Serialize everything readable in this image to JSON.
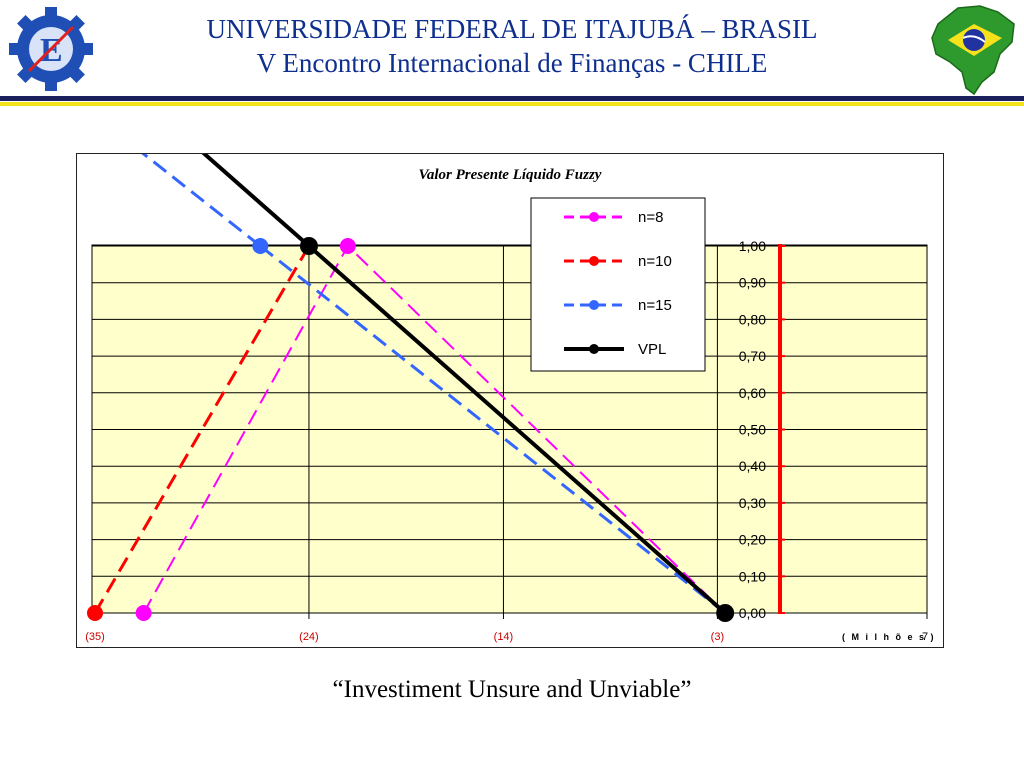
{
  "header": {
    "title_line1": "UNIVERSIDADE FEDERAL DE ITAJUBÁ – BRASIL",
    "title_line2": "V Encontro Internacional de Finanças - CHILE"
  },
  "caption": "“Investiment Unsure and Unviable”",
  "colors": {
    "header_text": "#0f2f8f",
    "rule_navy": "#1b1f5e",
    "rule_yellow": "#f2e21a",
    "plot_bg": "#ffffcc",
    "n8": "#ff00ff",
    "n10": "#ff0000",
    "n15": "#3366ff",
    "vpl": "#000000",
    "axis_red": "#ff0000"
  },
  "icons": {
    "left_logo": "university-gear-logo-icon",
    "right_logo": "brazil-map-flag-icon"
  },
  "chart_data": {
    "type": "line",
    "title": "Valor Presente Líquido Fuzzy",
    "unit_label": "( M i l h õ e s )",
    "x_tick_labels": [
      "(35)",
      "(24)",
      "(14)",
      "(3)"
    ],
    "x_tick_values": [
      -35,
      -24,
      -14,
      -3
    ],
    "x_extra_label": "7",
    "xlim": [
      -35,
      7
    ],
    "y_tick_labels": [
      "0,00",
      "0,10",
      "0,20",
      "0,30",
      "0,40",
      "0,50",
      "0,60",
      "0,70",
      "0,80",
      "0,90",
      "1,00"
    ],
    "ylim": [
      0,
      1
    ],
    "grid": true,
    "legend_position": "top-right",
    "series": [
      {
        "name": "n=8",
        "style": "dashed",
        "color": "#ff00ff",
        "x": [
          -32.5,
          -22,
          -2.6
        ],
        "y": [
          0,
          1,
          0
        ]
      },
      {
        "name": "n=10",
        "style": "dashed",
        "color": "#ff0000",
        "x": [
          -35,
          -24,
          -2.6
        ],
        "y": [
          0,
          1,
          0
        ]
      },
      {
        "name": "n=15",
        "style": "dashed",
        "color": "#3366ff",
        "x": [
          -26.5,
          -2.6
        ],
        "y": [
          1,
          0
        ]
      },
      {
        "name": "VPL",
        "style": "solid",
        "color": "#000000",
        "x": [
          -24,
          -2.6
        ],
        "y": [
          1,
          0
        ]
      }
    ]
  }
}
